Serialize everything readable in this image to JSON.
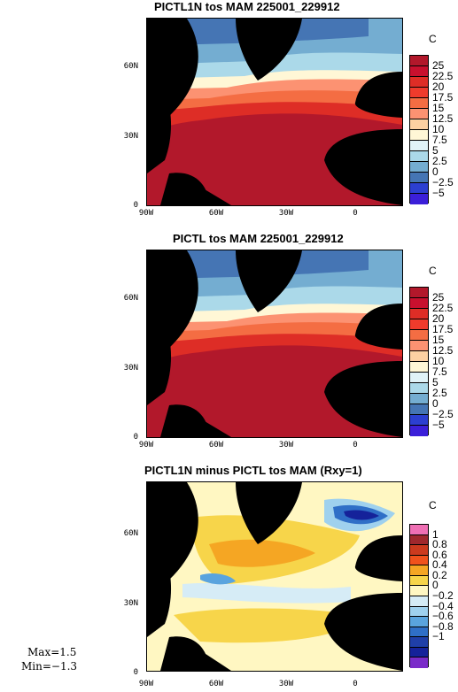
{
  "panels": [
    {
      "title": "PICTL1N tos MAM 225001_229912",
      "units": "C",
      "colorbar_labels": [
        "25",
        "22.5",
        "20",
        "17.5",
        "15",
        "12.5",
        "10",
        "7.5",
        "5",
        "2.5",
        "0",
        "−2.5",
        "−5"
      ],
      "colorbar_colors": [
        "#b2182b",
        "#c8102e",
        "#de2d26",
        "#ef3b2c",
        "#f46d43",
        "#fc9272",
        "#fdd0a2",
        "#fff7d6",
        "#e0f3f8",
        "#abd9e9",
        "#74add1",
        "#4575b4",
        "#2c3fd1",
        "#3b1fd9"
      ]
    },
    {
      "title": "PICTL tos MAM 225001_229912",
      "units": "C",
      "colorbar_labels": [
        "25",
        "22.5",
        "20",
        "17.5",
        "15",
        "12.5",
        "10",
        "7.5",
        "5",
        "2.5",
        "0",
        "−2.5",
        "−5"
      ],
      "colorbar_colors": [
        "#b2182b",
        "#c8102e",
        "#de2d26",
        "#ef3b2c",
        "#f46d43",
        "#fc9272",
        "#fdd0a2",
        "#fff7d6",
        "#e0f3f8",
        "#abd9e9",
        "#74add1",
        "#4575b4",
        "#2c3fd1",
        "#3b1fd9"
      ]
    },
    {
      "title": "PICTL1N minus PICTL tos MAM (Rxy=1)",
      "units": "C",
      "colorbar_labels": [
        "1",
        "0.8",
        "0.6",
        "0.4",
        "0.2",
        "0",
        "−0.2",
        "−0.4",
        "−0.6",
        "−0.8",
        "−1"
      ],
      "colorbar_colors": [
        "#ef6fb4",
        "#a0282d",
        "#cc3a1e",
        "#f0521c",
        "#f5a623",
        "#f7d54a",
        "#fff7c2",
        "#d6ecf6",
        "#9fd1ee",
        "#5aa4de",
        "#2f6fc7",
        "#1f3fa8",
        "#15229a",
        "#7a2bc9"
      ]
    }
  ],
  "lat_labels": [
    "60N",
    "30N",
    "0"
  ],
  "lon_labels": [
    "90W",
    "60W",
    "30W",
    "0"
  ],
  "stats": {
    "max": "Max=1.5",
    "min": "Min=−1.3"
  },
  "map_region": {
    "lon_range": [
      -90,
      20
    ],
    "lat_range": [
      0,
      80
    ]
  }
}
